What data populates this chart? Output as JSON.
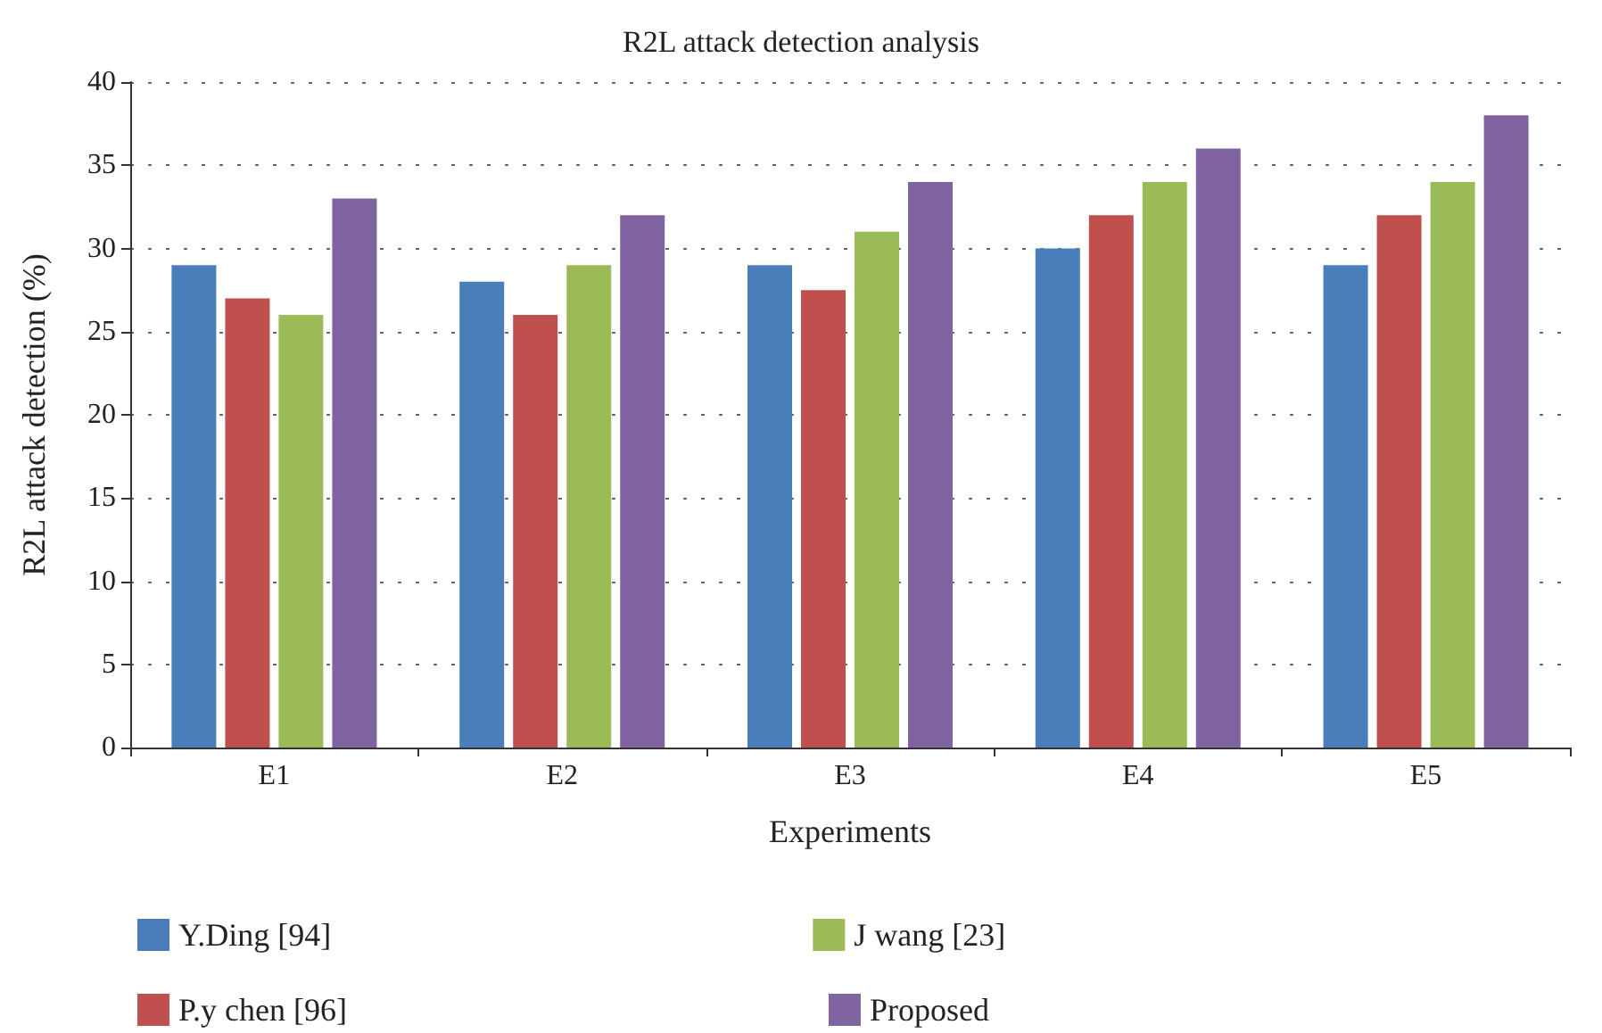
{
  "chart_data": {
    "type": "bar",
    "title": "R2L attack detection analysis",
    "xlabel": "Experiments",
    "ylabel": "R2L attack detection (%)",
    "categories": [
      "E1",
      "E2",
      "E3",
      "E4",
      "E5"
    ],
    "series": [
      {
        "name": "Y.Ding [94]",
        "color": "#4a7ebb",
        "values": [
          29,
          28,
          29,
          30,
          29
        ]
      },
      {
        "name": "P.y chen [96]",
        "color": "#c0504d",
        "values": [
          27,
          26,
          27.5,
          32,
          32
        ]
      },
      {
        "name": "J wang [23]",
        "color": "#9bbb59",
        "values": [
          26,
          29,
          31,
          34,
          34
        ]
      },
      {
        "name": "Proposed",
        "color": "#8064a2",
        "values": [
          33,
          32,
          34,
          36,
          38
        ]
      }
    ],
    "ylim": [
      0,
      40
    ],
    "yticks": [
      0,
      5,
      10,
      15,
      20,
      25,
      30,
      35,
      40
    ],
    "grid": "y",
    "legend": "bottom"
  }
}
